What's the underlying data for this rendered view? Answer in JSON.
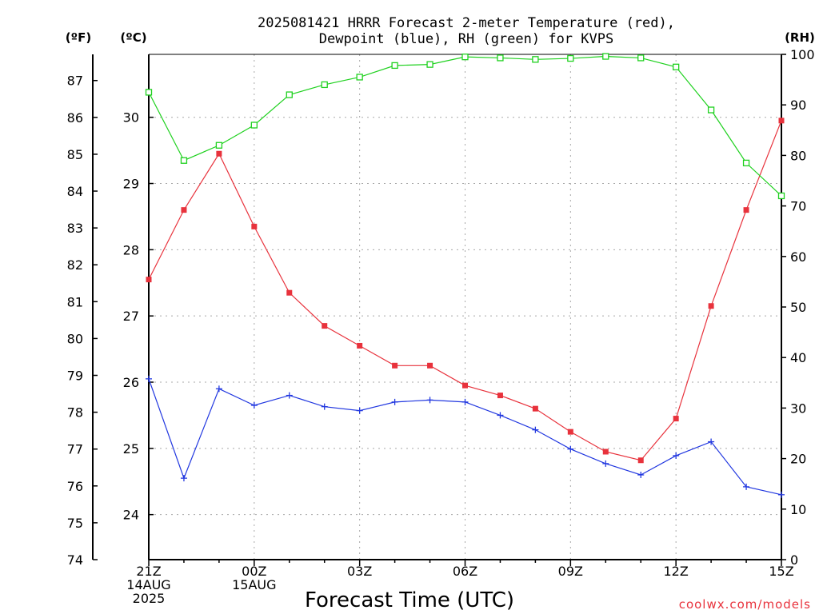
{
  "chart_data": {
    "type": "line",
    "title": [
      "2025081421 HRRR Forecast 2-meter Temperature (red),",
      "Dewpoint (blue), RH (green) for KVPS"
    ],
    "xlabel": "Forecast Time (UTC)",
    "credit": "coolwx.com/models",
    "units": {
      "fahrenheit": "(ºF)",
      "celsius": "(ºC)",
      "rh": "(RH)"
    },
    "x_ticks": [
      {
        "hour": 0,
        "lines": [
          "21Z",
          "14AUG",
          "2025"
        ]
      },
      {
        "hour": 3,
        "lines": [
          "00Z",
          "15AUG"
        ]
      },
      {
        "hour": 6,
        "lines": [
          "03Z"
        ]
      },
      {
        "hour": 9,
        "lines": [
          "06Z"
        ]
      },
      {
        "hour": 12,
        "lines": [
          "09Z"
        ]
      },
      {
        "hour": 15,
        "lines": [
          "12Z"
        ]
      },
      {
        "hour": 18,
        "lines": [
          "15Z"
        ]
      }
    ],
    "xlim": [
      0,
      18
    ],
    "celsius_axis": {
      "ylim": [
        23.32,
        30.95
      ],
      "ticks": [
        24,
        25,
        26,
        27,
        28,
        29,
        30
      ]
    },
    "fahrenheit_axis": {
      "ylim": [
        74,
        87.71
      ],
      "ticks": [
        74,
        75,
        76,
        77,
        78,
        79,
        80,
        81,
        82,
        83,
        84,
        85,
        86,
        87
      ]
    },
    "rh_axis": {
      "ylim": [
        0,
        100
      ],
      "ticks": [
        0,
        10,
        20,
        30,
        40,
        50,
        60,
        70,
        80,
        90,
        100
      ]
    },
    "grid": true,
    "series": [
      {
        "name": "Temperature",
        "color": "#e8323c",
        "marker": "filled-square",
        "axis": "celsius",
        "values": [
          27.55,
          28.6,
          29.45,
          28.35,
          27.35,
          26.85,
          26.55,
          26.25,
          26.25,
          25.95,
          25.8,
          25.6,
          25.25,
          24.95,
          24.82,
          25.45,
          27.15,
          28.6,
          29.95
        ]
      },
      {
        "name": "Dewpoint",
        "color": "#2238e0",
        "marker": "plus",
        "axis": "celsius",
        "values": [
          26.05,
          24.55,
          25.9,
          25.65,
          25.8,
          25.63,
          25.57,
          25.7,
          25.73,
          25.7,
          25.5,
          25.28,
          24.99,
          24.77,
          24.6,
          24.89,
          25.1,
          24.42,
          24.3
        ]
      },
      {
        "name": "RH",
        "color": "#1fd11f",
        "marker": "open-square",
        "axis": "rh",
        "values": [
          92.5,
          79,
          82,
          86,
          92,
          94,
          95.5,
          97.8,
          98,
          99.5,
          99.3,
          99,
          99.2,
          99.6,
          99.3,
          97.5,
          89,
          78.5,
          72
        ]
      }
    ]
  }
}
